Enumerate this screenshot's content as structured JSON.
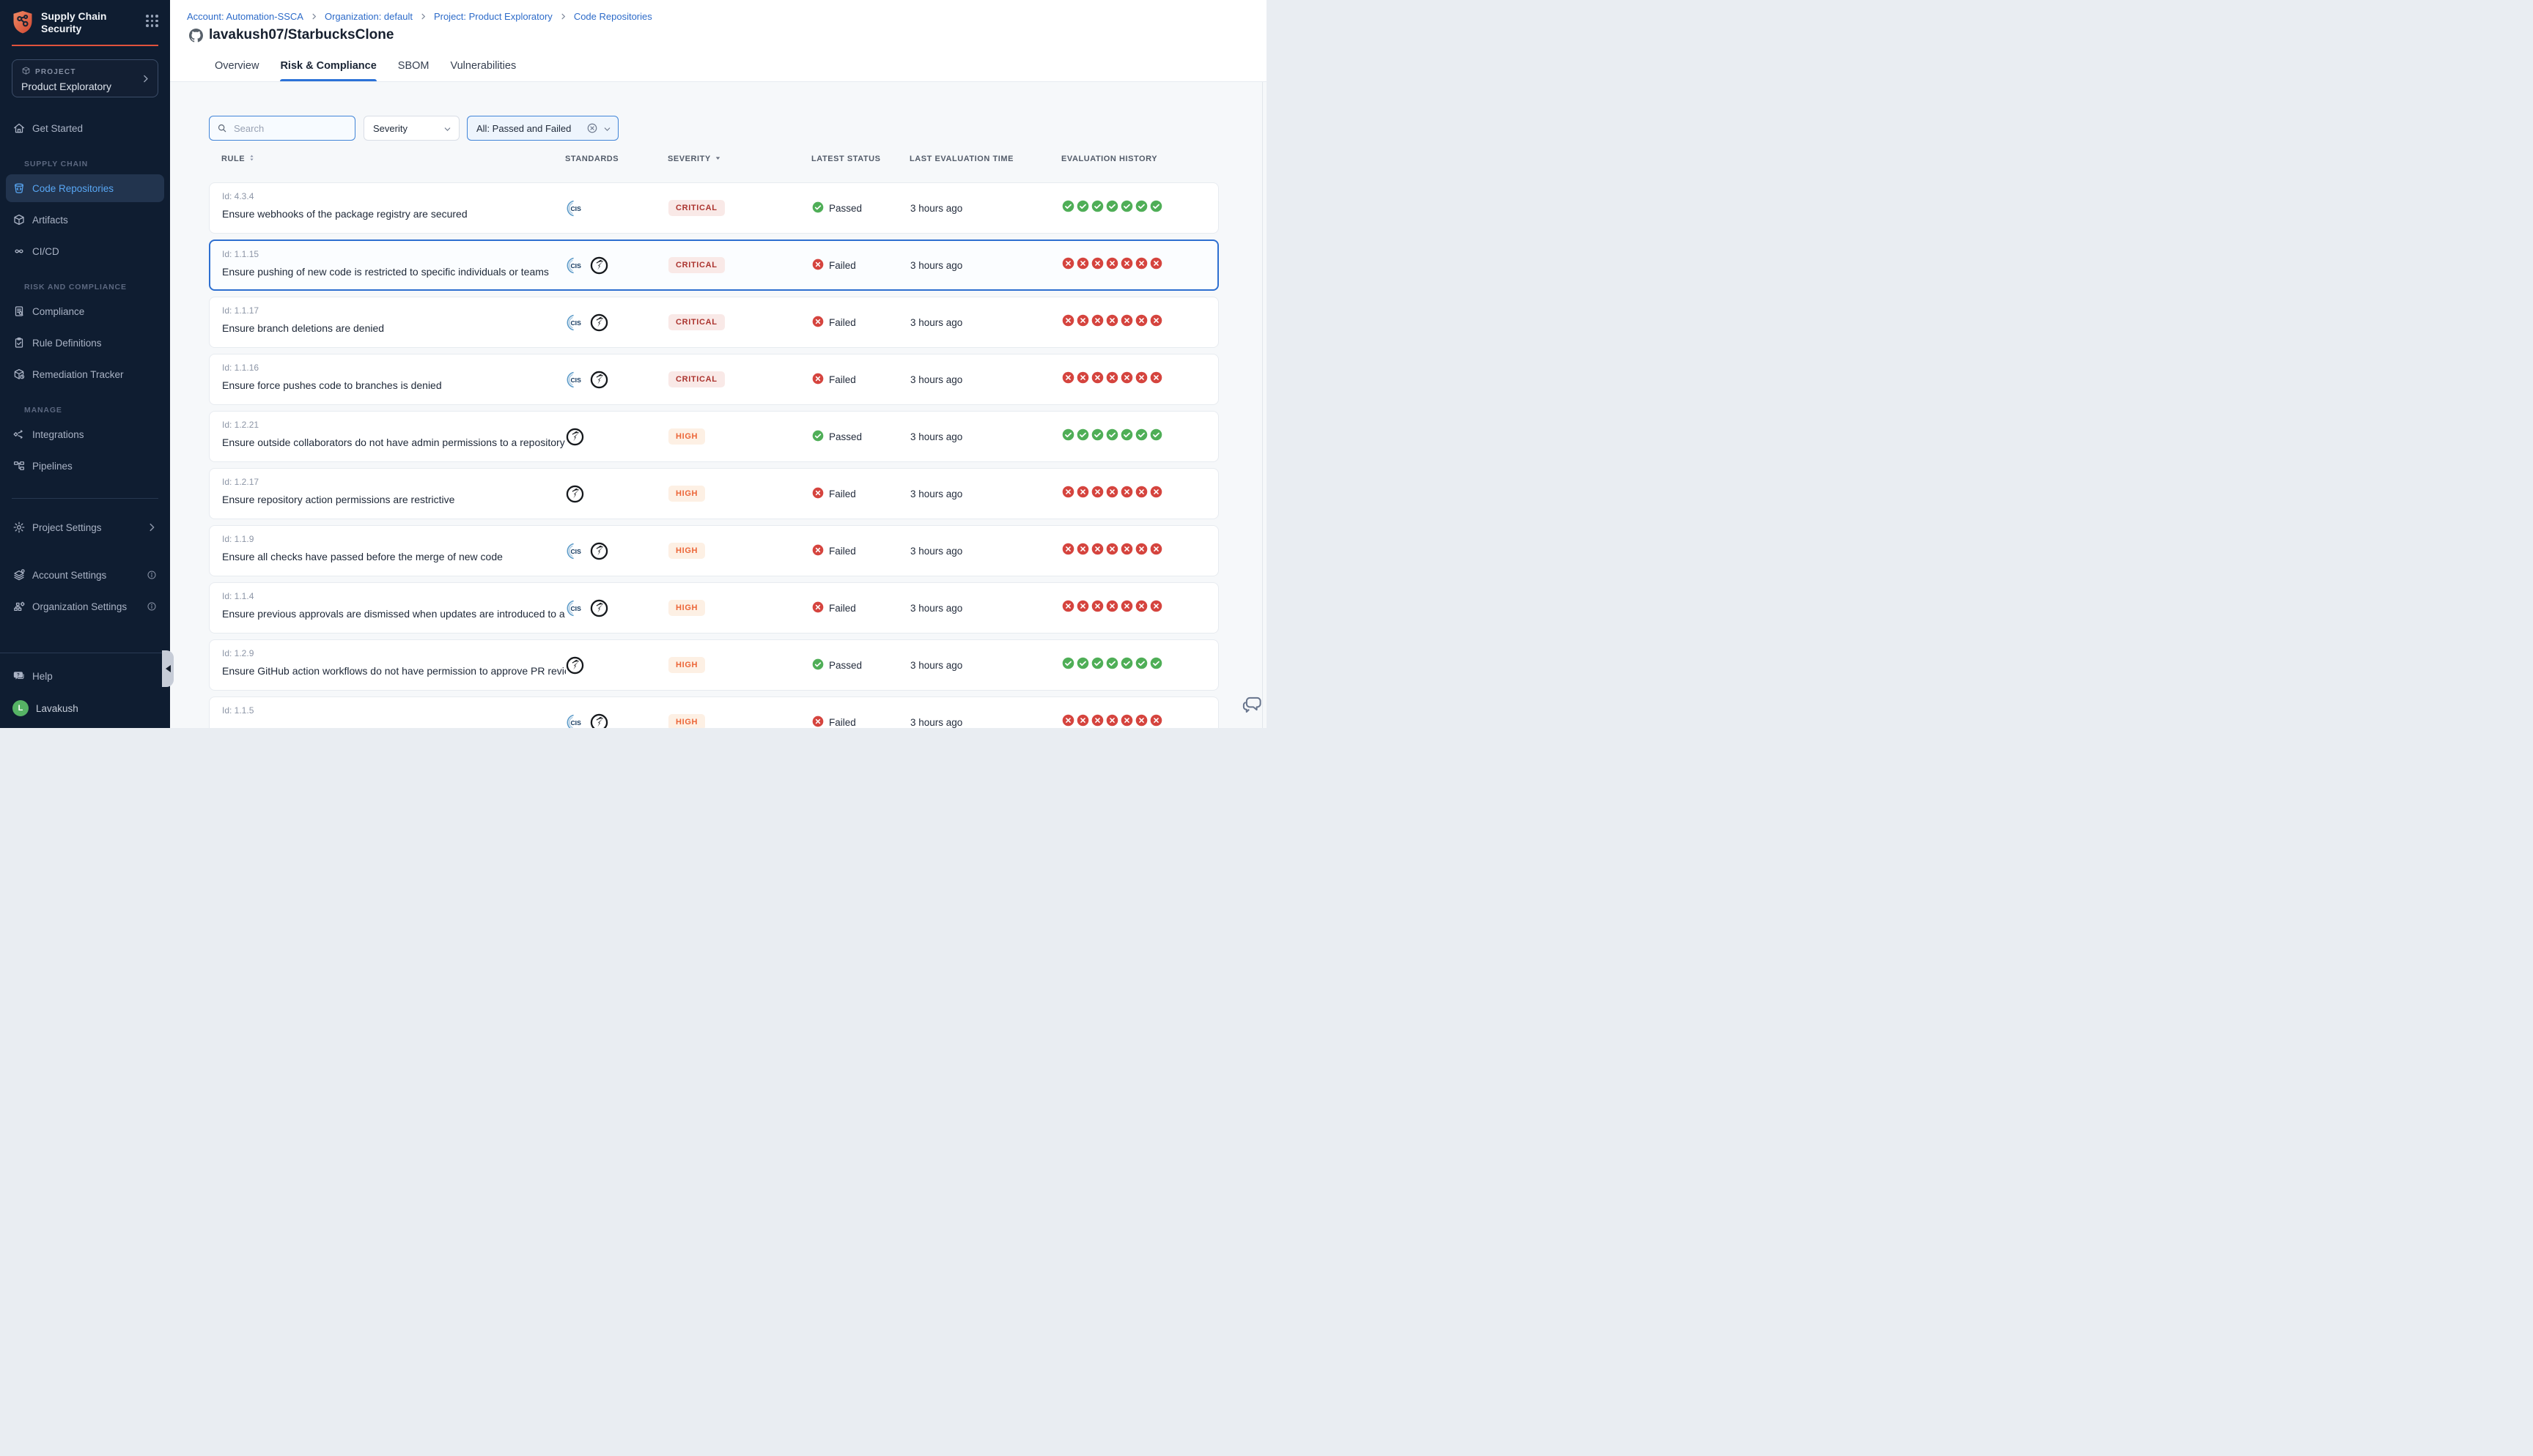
{
  "colors": {
    "brand_red": "#e1523c",
    "sidebar_bg": "#0f1d31",
    "sidebar_active_text": "#58a6f3",
    "link_blue": "#2d6bc9",
    "tab_underline_blue": "#2c72d8",
    "filter_border_blue": "#4285d8",
    "selected_row_border": "#2e6fd0",
    "critical_text": "#ab332e",
    "critical_bg": "#f9e9e7",
    "high_text": "#ec6537",
    "high_bg": "#fdf0e4",
    "pass_green": "#4fae57",
    "fail_red": "#d5443e",
    "avatar_green": "#56b365"
  },
  "sidebar": {
    "brand": {
      "line1": "Supply Chain",
      "line2": "Security"
    },
    "project": {
      "label": "PROJECT",
      "name": "Product Exploratory"
    },
    "primary": [
      {
        "label": "Get Started",
        "icon": "home"
      }
    ],
    "sections": [
      {
        "header": "SUPPLY CHAIN",
        "items": [
          {
            "label": "Code Repositories",
            "icon": "code-repository",
            "active": true
          },
          {
            "label": "Artifacts",
            "icon": "cube"
          },
          {
            "label": "CI/CD",
            "icon": "infinity"
          }
        ]
      },
      {
        "header": "RISK AND COMPLIANCE",
        "items": [
          {
            "label": "Compliance",
            "icon": "doc-search"
          },
          {
            "label": "Rule Definitions",
            "icon": "clipboard-check"
          },
          {
            "label": "Remediation Tracker",
            "icon": "box-wrench"
          }
        ]
      },
      {
        "header": "MANAGE",
        "items": [
          {
            "label": "Integrations",
            "icon": "integration"
          },
          {
            "label": "Pipelines",
            "icon": "pipeline"
          }
        ]
      }
    ],
    "settings": [
      {
        "label": "Project Settings",
        "icon": "gear",
        "trailing": "chevron-right"
      },
      {
        "label": "Account Settings",
        "icon": "layers-gear",
        "trailing": "info"
      },
      {
        "label": "Organization Settings",
        "icon": "org-gear",
        "trailing": "info"
      }
    ],
    "footer": [
      {
        "label": "Help",
        "icon": "help-chat"
      }
    ],
    "user": {
      "name": "Lavakush",
      "initial": "L"
    }
  },
  "breadcrumb": [
    "Account: Automation-SSCA",
    "Organization: default",
    "Project: Product Exploratory",
    "Code Repositories"
  ],
  "page_title": "lavakush07/StarbucksClone",
  "tabs": [
    {
      "label": "Overview",
      "active": false
    },
    {
      "label": "Risk & Compliance",
      "active": true
    },
    {
      "label": "SBOM",
      "active": false
    },
    {
      "label": "Vulnerabilities",
      "active": false
    }
  ],
  "toolbar": {
    "search_placeholder": "Search",
    "severity_label": "Severity",
    "status_filter_label": "All: Passed and Failed"
  },
  "table": {
    "columns": [
      {
        "label": "RULE",
        "sort": "both"
      },
      {
        "label": "STANDARDS",
        "sort": "none"
      },
      {
        "label": "SEVERITY",
        "sort": "down"
      },
      {
        "label": "LATEST STATUS",
        "sort": "none"
      },
      {
        "label": "LAST EVALUATION TIME",
        "sort": "none"
      },
      {
        "label": "EVALUATION HISTORY",
        "sort": "none"
      }
    ],
    "rows": [
      {
        "id": "Id: 4.3.4",
        "name": "Ensure webhooks of the package registry are secured",
        "standards": [
          "cis"
        ],
        "severity": "CRITICAL",
        "status": "Passed",
        "time": "3 hours ago",
        "history": [
          "pass",
          "pass",
          "pass",
          "pass",
          "pass",
          "pass",
          "pass"
        ],
        "selected": false
      },
      {
        "id": "Id: 1.1.15",
        "name": "Ensure pushing of new code is restricted to specific individuals or teams",
        "standards": [
          "cis",
          "owasp"
        ],
        "severity": "CRITICAL",
        "status": "Failed",
        "time": "3 hours ago",
        "history": [
          "fail",
          "fail",
          "fail",
          "fail",
          "fail",
          "fail",
          "fail"
        ],
        "selected": true
      },
      {
        "id": "Id: 1.1.17",
        "name": "Ensure branch deletions are denied",
        "standards": [
          "cis",
          "owasp"
        ],
        "severity": "CRITICAL",
        "status": "Failed",
        "time": "3 hours ago",
        "history": [
          "fail",
          "fail",
          "fail",
          "fail",
          "fail",
          "fail",
          "fail"
        ],
        "selected": false
      },
      {
        "id": "Id: 1.1.16",
        "name": "Ensure force pushes code to branches is denied",
        "standards": [
          "cis",
          "owasp"
        ],
        "severity": "CRITICAL",
        "status": "Failed",
        "time": "3 hours ago",
        "history": [
          "fail",
          "fail",
          "fail",
          "fail",
          "fail",
          "fail",
          "fail"
        ],
        "selected": false
      },
      {
        "id": "Id: 1.2.21",
        "name": "Ensure outside collaborators do not have admin permissions to a repository",
        "standards": [
          "owasp"
        ],
        "severity": "HIGH",
        "status": "Passed",
        "time": "3 hours ago",
        "history": [
          "pass",
          "pass",
          "pass",
          "pass",
          "pass",
          "pass",
          "pass"
        ],
        "selected": false
      },
      {
        "id": "Id: 1.2.17",
        "name": "Ensure repository action permissions are restrictive",
        "standards": [
          "owasp"
        ],
        "severity": "HIGH",
        "status": "Failed",
        "time": "3 hours ago",
        "history": [
          "fail",
          "fail",
          "fail",
          "fail",
          "fail",
          "fail",
          "fail"
        ],
        "selected": false
      },
      {
        "id": "Id: 1.1.9",
        "name": "Ensure all checks have passed before the merge of new code",
        "standards": [
          "cis",
          "owasp"
        ],
        "severity": "HIGH",
        "status": "Failed",
        "time": "3 hours ago",
        "history": [
          "fail",
          "fail",
          "fail",
          "fail",
          "fail",
          "fail",
          "fail"
        ],
        "selected": false
      },
      {
        "id": "Id: 1.1.4",
        "name": "Ensure previous approvals are dismissed when updates are introduced to a cod...",
        "standards": [
          "cis",
          "owasp"
        ],
        "severity": "HIGH",
        "status": "Failed",
        "time": "3 hours ago",
        "history": [
          "fail",
          "fail",
          "fail",
          "fail",
          "fail",
          "fail",
          "fail"
        ],
        "selected": false
      },
      {
        "id": "Id: 1.2.9",
        "name": "Ensure GitHub action workflows do not have permission to approve PR reviews ...",
        "standards": [
          "owasp"
        ],
        "severity": "HIGH",
        "status": "Passed",
        "time": "3 hours ago",
        "history": [
          "pass",
          "pass",
          "pass",
          "pass",
          "pass",
          "pass",
          "pass"
        ],
        "selected": false
      },
      {
        "id": "Id: 1.1.5",
        "name": "",
        "standards": [
          "cis",
          "owasp"
        ],
        "severity": "HIGH",
        "status": "Failed",
        "time": "3 hours ago",
        "history": [
          "fail",
          "fail",
          "fail",
          "fail",
          "fail",
          "fail",
          "fail"
        ],
        "selected": false
      }
    ]
  }
}
